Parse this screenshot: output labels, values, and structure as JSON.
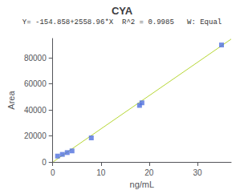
{
  "chart_data": {
    "type": "scatter",
    "title": "CYA",
    "subtitle": "Y= -154.858+2558.96*X  R^2 = 0.9985   W: Equal",
    "xlabel": "ng/mL",
    "ylabel": "Area",
    "series": [
      {
        "type": "scatter",
        "marker": "square",
        "x": [
          1.0,
          2.0,
          3.0,
          4.0,
          8.0,
          18.0,
          18.5,
          35.0
        ],
        "values": [
          4500,
          5800,
          7200,
          8500,
          18500,
          43500,
          45500,
          90000
        ]
      },
      {
        "type": "line",
        "x": [
          0.1,
          37
        ],
        "values": [
          101.038,
          94526.662
        ]
      }
    ],
    "xlim": [
      0,
      37
    ],
    "ylim": [
      0,
      95000
    ],
    "xticks": [
      0,
      10,
      20,
      30
    ],
    "yticks": [
      0,
      20000,
      40000,
      60000,
      80000
    ],
    "grid": false
  }
}
